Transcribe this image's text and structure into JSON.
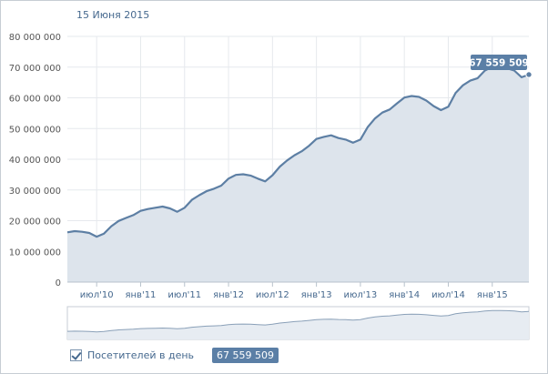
{
  "header": {
    "date": "15 Июня 2015"
  },
  "legend": {
    "label": "Посетителей в день",
    "value": "67 559 509",
    "checked": true
  },
  "tooltip": {
    "value": "67 559 509"
  },
  "colors": {
    "line": "#5d7fa4",
    "fill": "#dde4ec",
    "tooltip": "#5b7fa6",
    "grid": "#e6e9ed"
  },
  "chart_data": {
    "type": "area",
    "title": "",
    "xlabel": "",
    "ylabel": "",
    "ylim": [
      0,
      80000000
    ],
    "grid": true,
    "y_ticks": [
      {
        "value": 0,
        "label": "0"
      },
      {
        "value": 10000000,
        "label": "10 000 000"
      },
      {
        "value": 20000000,
        "label": "20 000 000"
      },
      {
        "value": 30000000,
        "label": "30 000 000"
      },
      {
        "value": 40000000,
        "label": "40 000 000"
      },
      {
        "value": 50000000,
        "label": "50 000 000"
      },
      {
        "value": 60000000,
        "label": "60 000 000"
      },
      {
        "value": 70000000,
        "label": "70 000 000"
      },
      {
        "value": 80000000,
        "label": "80 000 000"
      }
    ],
    "x_ticks": [
      {
        "date": "2010-07",
        "label": "июл'10"
      },
      {
        "date": "2011-01",
        "label": "янв'11"
      },
      {
        "date": "2011-07",
        "label": "июл'11"
      },
      {
        "date": "2012-01",
        "label": "янв'12"
      },
      {
        "date": "2012-07",
        "label": "июл'12"
      },
      {
        "date": "2013-01",
        "label": "янв'13"
      },
      {
        "date": "2013-07",
        "label": "июл'13"
      },
      {
        "date": "2014-01",
        "label": "янв'14"
      },
      {
        "date": "2014-07",
        "label": "июл'14"
      },
      {
        "date": "2015-01",
        "label": "янв'15"
      }
    ],
    "xlim": [
      "2010-03",
      "2015-06"
    ],
    "series": [
      {
        "x": [
          "2010-03",
          "2010-04",
          "2010-05",
          "2010-06",
          "2010-07",
          "2010-08",
          "2010-09",
          "2010-10",
          "2010-11",
          "2010-12",
          "2011-01",
          "2011-02",
          "2011-03",
          "2011-04",
          "2011-05",
          "2011-06",
          "2011-07",
          "2011-08",
          "2011-09",
          "2011-10",
          "2011-11",
          "2011-12",
          "2012-01",
          "2012-02",
          "2012-03",
          "2012-04",
          "2012-05",
          "2012-06",
          "2012-07",
          "2012-08",
          "2012-09",
          "2012-10",
          "2012-11",
          "2012-12",
          "2013-01",
          "2013-02",
          "2013-03",
          "2013-04",
          "2013-05",
          "2013-06",
          "2013-07",
          "2013-08",
          "2013-09",
          "2013-10",
          "2013-11",
          "2013-12",
          "2014-01",
          "2014-02",
          "2014-03",
          "2014-04",
          "2014-05",
          "2014-06",
          "2014-07",
          "2014-08",
          "2014-09",
          "2014-10",
          "2014-11",
          "2014-12",
          "2015-01",
          "2015-02",
          "2015-03",
          "2015-04",
          "2015-05",
          "2015-06"
        ],
        "values": [
          16200000,
          16600000,
          16400000,
          16000000,
          14800000,
          15800000,
          18200000,
          19900000,
          20900000,
          21800000,
          23200000,
          23800000,
          24200000,
          24600000,
          24000000,
          22900000,
          24200000,
          26800000,
          28300000,
          29600000,
          30400000,
          31400000,
          33700000,
          34900000,
          35100000,
          34700000,
          33700000,
          32800000,
          34800000,
          37600000,
          39600000,
          41300000,
          42600000,
          44400000,
          46600000,
          47300000,
          47800000,
          46900000,
          46400000,
          45400000,
          46400000,
          50500000,
          53300000,
          55200000,
          56200000,
          58200000,
          60100000,
          60600000,
          60300000,
          59100000,
          57300000,
          56000000,
          57100000,
          61600000,
          64100000,
          65600000,
          66400000,
          68900000,
          70100000,
          70100000,
          69600000,
          68900000,
          66700000,
          67559509
        ]
      }
    ]
  }
}
